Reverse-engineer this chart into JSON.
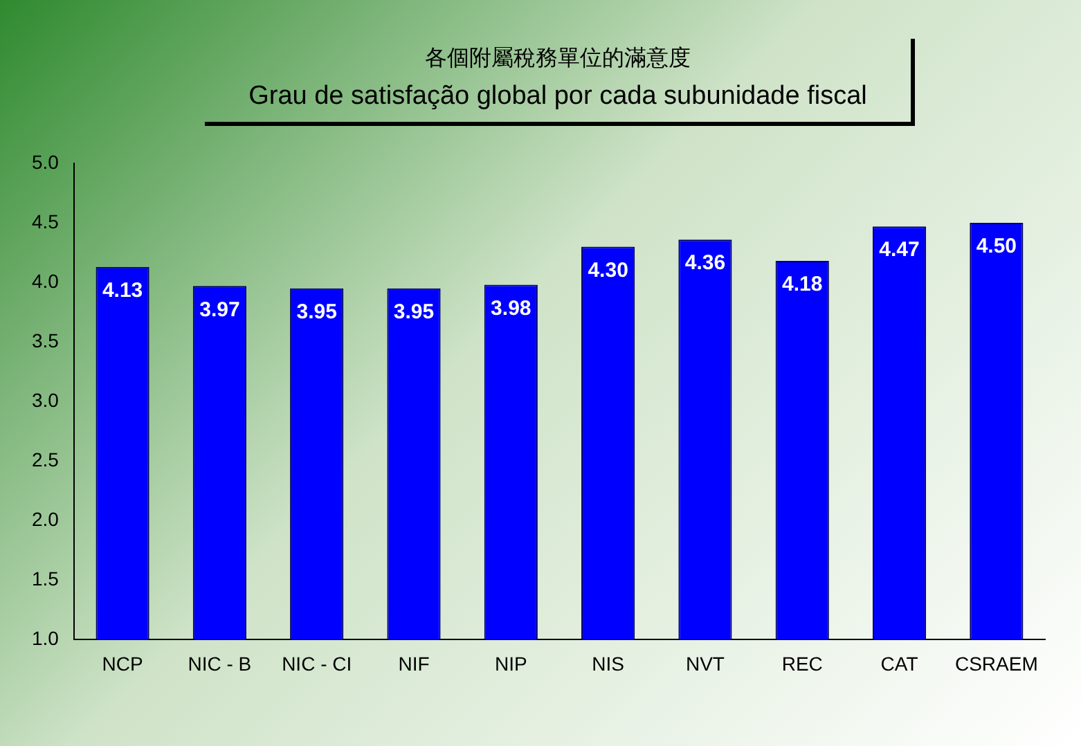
{
  "chart_data": {
    "type": "bar",
    "title": "各個附屬稅務單位的滿意度",
    "subtitle": "Grau de satisfação global por cada subunidade fiscal",
    "categories": [
      "NCP",
      "NIC - B",
      "NIC - CI",
      "NIF",
      "NIP",
      "NIS",
      "NVT",
      "REC",
      "CAT",
      "CSRAEM"
    ],
    "values": [
      4.13,
      3.97,
      3.95,
      3.95,
      3.98,
      4.3,
      4.36,
      4.18,
      4.47,
      4.5
    ],
    "value_labels": [
      "4.13",
      "3.97",
      "3.95",
      "3.95",
      "3.98",
      "4.30",
      "4.36",
      "4.18",
      "4.47",
      "4.50"
    ],
    "color": "#0000ff",
    "ylim": [
      1.0,
      5.0
    ],
    "yticks": [
      {
        "value": 1,
        "label": "1.0"
      },
      {
        "value": 1.5,
        "label": "1.5"
      },
      {
        "value": 2,
        "label": "2.0"
      },
      {
        "value": 2.5,
        "label": "2.5"
      },
      {
        "value": 3,
        "label": "3.0"
      },
      {
        "value": 3.5,
        "label": "3.5"
      },
      {
        "value": 4,
        "label": "4.0"
      },
      {
        "value": 4.5,
        "label": "4.5"
      },
      {
        "value": 5,
        "label": "5.0"
      }
    ],
    "grid": false,
    "legend": false
  }
}
